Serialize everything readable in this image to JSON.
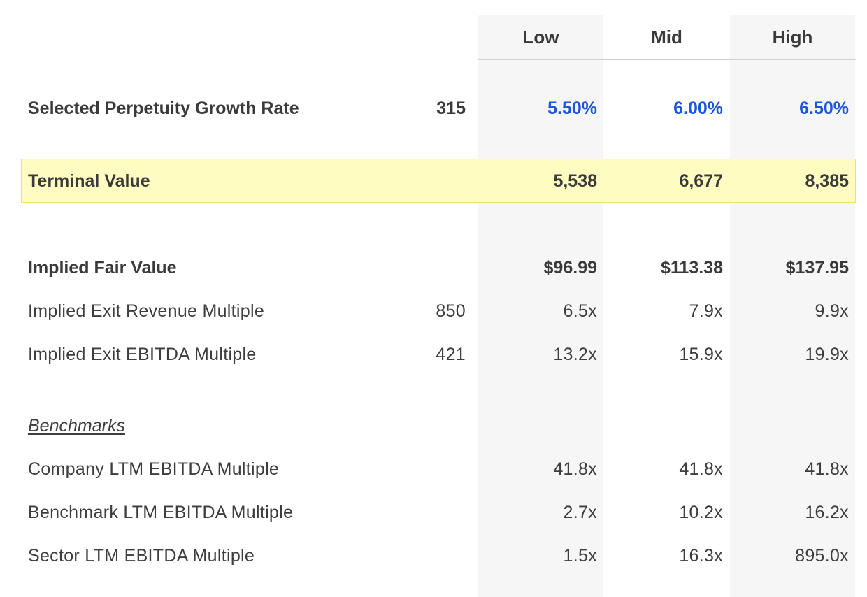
{
  "header": {
    "low": "Low",
    "mid": "Mid",
    "high": "High"
  },
  "growth_rate": {
    "label": "Selected Perpetuity Growth Rate",
    "ref": "315",
    "low": "5.50%",
    "mid": "6.00%",
    "high": "6.50%"
  },
  "terminal_value": {
    "label": "Terminal Value",
    "low": "5,538",
    "mid": "6,677",
    "high": "8,385"
  },
  "implied_fair_value": {
    "label": "Implied Fair Value",
    "low": "$96.99",
    "mid": "$113.38",
    "high": "$137.95"
  },
  "exit_revenue_multiple": {
    "label": "Implied Exit Revenue Multiple",
    "ref": "850",
    "low": "6.5x",
    "mid": "7.9x",
    "high": "9.9x"
  },
  "exit_ebitda_multiple": {
    "label": "Implied Exit EBITDA Multiple",
    "ref": "421",
    "low": "13.2x",
    "mid": "15.9x",
    "high": "19.9x"
  },
  "benchmarks": {
    "heading": "Benchmarks",
    "rows": [
      {
        "label": "Company LTM EBITDA Multiple",
        "low": "41.8x",
        "mid": "41.8x",
        "high": "41.8x"
      },
      {
        "label": "Benchmark LTM EBITDA Multiple",
        "low": "2.7x",
        "mid": "10.2x",
        "high": "16.2x"
      },
      {
        "label": "Sector LTM EBITDA Multiple",
        "low": "1.5x",
        "mid": "16.3x",
        "high": "895.0x"
      }
    ]
  },
  "colors": {
    "highlight_bg": "#fefcc0",
    "highlight_border": "#efe360",
    "input_blue": "#1a56db",
    "column_shade": "#f6f6f6"
  }
}
